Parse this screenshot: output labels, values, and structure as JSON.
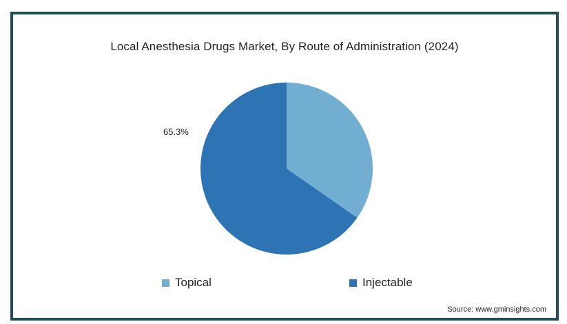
{
  "chart_data": {
    "type": "pie",
    "title": "Local Anesthesia Drugs Market, By Route of Administration (2024)",
    "slices": [
      {
        "label": "Topical",
        "value": 34.7,
        "color": "#72aed2",
        "data_label": ""
      },
      {
        "label": "Injectable",
        "value": 65.3,
        "color": "#2e74b5",
        "data_label": "65.3%"
      }
    ],
    "start_angle": "12 o'clock, clockwise",
    "legend_position": "bottom",
    "source": "Source: www.gminsights.com"
  }
}
